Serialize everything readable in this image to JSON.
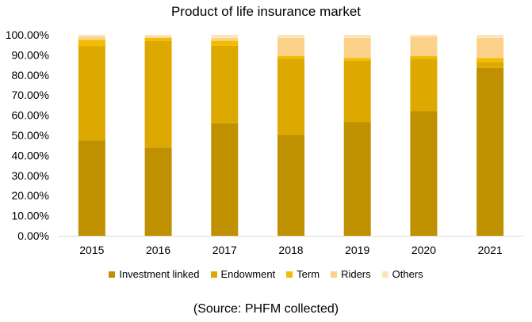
{
  "chart_data": {
    "type": "bar",
    "stacked": true,
    "title": "Product of life insurance market",
    "categories": [
      "2015",
      "2016",
      "2017",
      "2018",
      "2019",
      "2020",
      "2021"
    ],
    "series": [
      {
        "name": "Investment linked",
        "color": "#bf9000",
        "values": [
          47.5,
          44.0,
          56.0,
          50.0,
          56.5,
          62.0,
          83.5
        ]
      },
      {
        "name": "Endowment",
        "color": "#dda900",
        "values": [
          47.0,
          53.0,
          38.5,
          38.0,
          30.5,
          26.0,
          3.0
        ]
      },
      {
        "name": "Term",
        "color": "#f2bd00",
        "values": [
          3.0,
          1.5,
          2.5,
          1.5,
          1.5,
          1.5,
          2.0
        ]
      },
      {
        "name": "Riders",
        "color": "#fcd28a",
        "values": [
          1.5,
          0.5,
          1.5,
          9.0,
          10.0,
          9.5,
          10.0
        ]
      },
      {
        "name": "Others",
        "color": "#fde4bf",
        "values": [
          1.0,
          1.0,
          1.5,
          1.5,
          1.5,
          1.0,
          1.5
        ]
      }
    ],
    "ylim": [
      0,
      100
    ],
    "yticks": [
      "0.00%",
      "10.00%",
      "20.00%",
      "30.00%",
      "40.00%",
      "50.00%",
      "60.00%",
      "70.00%",
      "80.00%",
      "90.00%",
      "100.00%"
    ],
    "grid": false,
    "legend": "bottom"
  },
  "source_note": "(Source: PHFM collected)"
}
